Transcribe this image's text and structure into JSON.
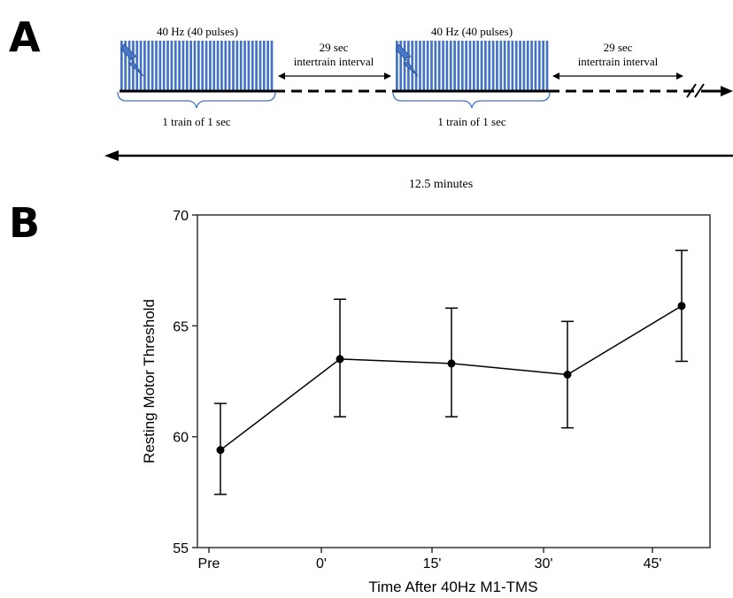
{
  "panel_a": {
    "letter": "A",
    "train_label": "40 Hz (40 pulses)",
    "train_caption": "1 train of 1 sec",
    "interval_label_line1": "29 sec",
    "interval_label_line2": "intertrain interval",
    "total_duration": "12.5 minutes",
    "pulses_per_train": 40,
    "train_color": "#4472c4",
    "bolt_color": "#4a78c8"
  },
  "panel_b": {
    "letter": "B"
  },
  "chart_data": {
    "type": "line",
    "categories": [
      "Pre",
      "0'",
      "15'",
      "30'",
      "45'"
    ],
    "values": [
      59.4,
      63.5,
      63.3,
      62.8,
      65.9
    ],
    "error_upper": [
      61.5,
      66.2,
      65.8,
      65.2,
      68.4
    ],
    "error_lower": [
      57.4,
      60.9,
      60.9,
      60.4,
      63.4
    ],
    "title": "",
    "xlabel": "Time After 40Hz M1-TMS",
    "ylabel": "Resting Motor Threshold",
    "ylim": [
      55,
      70
    ],
    "yticks": [
      55,
      60,
      65,
      70
    ],
    "grid": false,
    "line_color": "#000000"
  }
}
